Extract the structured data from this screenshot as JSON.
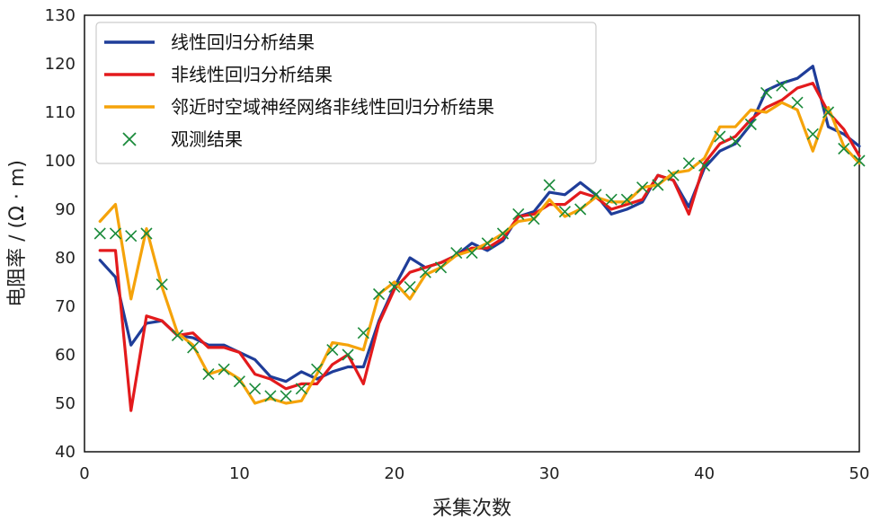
{
  "chart_data": {
    "type": "line",
    "xlabel": "采集次数",
    "ylabel": "电阻率 / (Ω · m)",
    "xlim": [
      0,
      50
    ],
    "ylim": [
      40,
      130
    ],
    "xticks": [
      "0",
      "10",
      "20",
      "30",
      "40",
      "50"
    ],
    "yticks": [
      "40",
      "50",
      "60",
      "70",
      "80",
      "90",
      "100",
      "110",
      "120",
      "130"
    ],
    "grid": false,
    "legend_position": "top-left",
    "x": [
      1,
      2,
      3,
      4,
      5,
      6,
      7,
      8,
      9,
      10,
      11,
      12,
      13,
      14,
      15,
      16,
      17,
      18,
      19,
      20,
      21,
      22,
      23,
      24,
      25,
      26,
      27,
      28,
      29,
      30,
      31,
      32,
      33,
      34,
      35,
      36,
      37,
      38,
      39,
      40,
      41,
      42,
      43,
      44,
      45,
      46,
      47,
      48,
      49,
      50
    ],
    "series": [
      {
        "name": "线性回归分析结果",
        "color": "#1f3d99",
        "style": "line",
        "values": [
          79.5,
          76,
          62,
          66.5,
          67,
          64,
          63.5,
          62,
          62,
          60.5,
          59,
          55.5,
          54.5,
          56.5,
          55,
          56.5,
          57.5,
          57.5,
          67,
          74,
          80,
          78,
          79,
          80.5,
          83,
          81.5,
          83.5,
          88.5,
          89.5,
          93.5,
          93,
          95.5,
          93,
          89,
          90,
          91.5,
          97,
          96,
          90.5,
          98.5,
          102,
          103.5,
          107.5,
          114.5,
          116,
          117,
          119.5,
          107,
          105.5,
          103
        ]
      },
      {
        "name": "非线性回归分析结果",
        "color": "#e31a1c",
        "style": "line",
        "values": [
          81.5,
          81.5,
          48.5,
          68,
          67,
          64,
          64.5,
          61.5,
          61.5,
          60.5,
          56,
          55,
          53,
          54,
          54,
          58,
          60,
          54,
          66.5,
          73.5,
          77,
          78,
          79,
          80.5,
          82,
          82,
          84,
          88.5,
          89,
          91,
          91,
          93.5,
          92.5,
          90,
          91,
          92,
          97,
          96,
          89,
          99.5,
          103.5,
          105,
          108.5,
          111,
          112.5,
          115,
          116,
          110,
          106.5,
          101
        ]
      },
      {
        "name": "邻近时空域神经网络非线性回归分析结果",
        "color": "#f5a30a",
        "style": "line",
        "values": [
          87.5,
          91,
          71.5,
          86,
          74,
          64.5,
          62,
          56,
          57,
          55,
          50,
          51,
          50,
          50.5,
          56,
          62.5,
          62,
          61,
          72.5,
          75,
          71.5,
          76.5,
          78,
          80.5,
          81.5,
          83,
          85,
          87.5,
          88,
          92,
          88.5,
          90,
          92.5,
          91.5,
          91.5,
          94.5,
          95,
          97.5,
          98,
          100.5,
          107,
          107,
          110.5,
          110,
          112,
          110.5,
          102,
          111,
          103,
          99.5
        ]
      },
      {
        "name": "观测结果",
        "color": "#1a8a3a",
        "style": "marker-x",
        "values": [
          85,
          85,
          84.5,
          85,
          74.5,
          64,
          61.5,
          56,
          57,
          54.5,
          53,
          51.5,
          51.5,
          53,
          57,
          61,
          60,
          64.5,
          72.5,
          74,
          74,
          77,
          78,
          81,
          81,
          83,
          85,
          89,
          88,
          95,
          89.5,
          90,
          93,
          92,
          92,
          94.5,
          95,
          97,
          99.5,
          99,
          105,
          104,
          107.5,
          114,
          115.5,
          112,
          105.5,
          110,
          102.5,
          100
        ]
      }
    ]
  }
}
